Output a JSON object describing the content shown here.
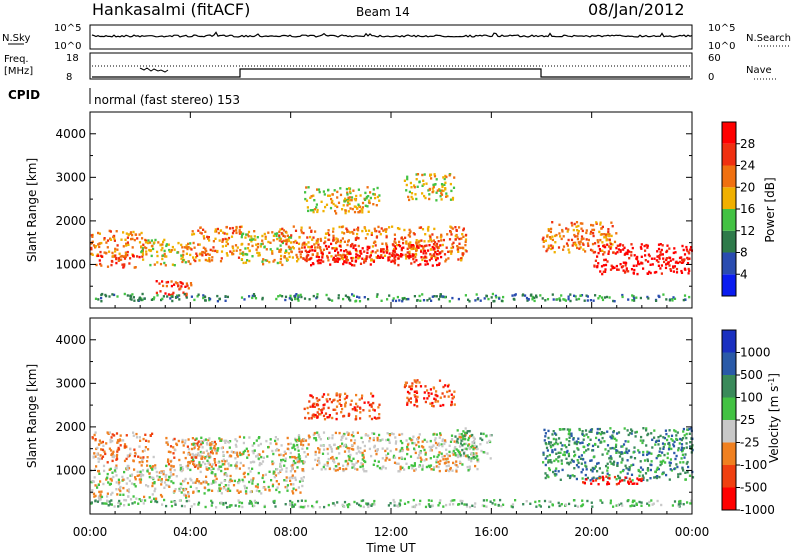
{
  "header": {
    "station": "Hankasalmi (fitACF)",
    "beam": "Beam 14",
    "date": "08/Jan/2012"
  },
  "noise_panel": {
    "left_label": "N.Sky",
    "right_label": "N.Search",
    "left_ticks": [
      "10^5",
      "10^0"
    ],
    "right_ticks": [
      "10^5",
      "10^0"
    ]
  },
  "freq_panel": {
    "left_label_1": "Freq.",
    "left_label_2": "[MHz]",
    "left_ticks": [
      "18",
      "8"
    ],
    "right_label": "Nave",
    "right_ticks": [
      "60",
      "0"
    ]
  },
  "cpid": {
    "label": "CPID",
    "value": "normal (fast stereo) 153"
  },
  "colors": {
    "power": [
      "#0a1cf0",
      "#2a4cb0",
      "#2e7a4a",
      "#43c243",
      "#f0b000",
      "#f07010",
      "#f03010",
      "#ff0000"
    ],
    "velocity": [
      "#ff0000",
      "#f04010",
      "#f08020",
      "#c8c8c8",
      "#43c243",
      "#3a8a5a",
      "#2a5aa8",
      "#1a30c0"
    ]
  },
  "chart_data": [
    {
      "type": "heatmap",
      "name": "power-panel",
      "xlabel": "",
      "ylabel": "Slant Range [km]",
      "ylim": [
        0,
        4500
      ],
      "yticks": [
        "1000",
        "2000",
        "3000",
        "4000"
      ],
      "colorbar_label": "Power [dB]",
      "colorbar_ticks": [
        "28",
        "24",
        "20",
        "16",
        "12",
        "8",
        "4"
      ],
      "regions": [
        {
          "t0": 0.0,
          "t1": 2.2,
          "r0": 1200,
          "r1": 1800,
          "level": 5
        },
        {
          "t0": 0.2,
          "t1": 2.0,
          "r0": 950,
          "r1": 1250,
          "level": 6
        },
        {
          "t0": 2.0,
          "t1": 4.0,
          "r0": 1000,
          "r1": 1600,
          "level": 4
        },
        {
          "t0": 4.0,
          "t1": 6.0,
          "r0": 1100,
          "r1": 1900,
          "level": 5
        },
        {
          "t0": 2.5,
          "t1": 4.0,
          "r0": 300,
          "r1": 650,
          "level": 6
        },
        {
          "t0": 6.0,
          "t1": 8.0,
          "r0": 1000,
          "r1": 1800,
          "level": 4
        },
        {
          "t0": 7.5,
          "t1": 15.0,
          "r0": 1100,
          "r1": 1900,
          "level": 5
        },
        {
          "t0": 8.5,
          "t1": 14.0,
          "r0": 1000,
          "r1": 1500,
          "level": 7
        },
        {
          "t0": 8.5,
          "t1": 11.5,
          "r0": 2200,
          "r1": 2800,
          "level": 4
        },
        {
          "t0": 12.5,
          "t1": 14.5,
          "r0": 2500,
          "r1": 3100,
          "level": 4
        },
        {
          "t0": 18.0,
          "t1": 21.0,
          "r0": 1300,
          "r1": 2000,
          "level": 5
        },
        {
          "t0": 20.0,
          "t1": 24.0,
          "r0": 800,
          "r1": 1500,
          "level": 7
        },
        {
          "t0": 0.0,
          "t1": 24.0,
          "r0": 180,
          "r1": 350,
          "level": 2
        }
      ]
    },
    {
      "type": "heatmap",
      "name": "velocity-panel",
      "xlabel": "Time UT",
      "ylabel": "Slant Range [km]",
      "ylim": [
        0,
        4500
      ],
      "yticks": [
        "1000",
        "2000",
        "3000",
        "4000"
      ],
      "xticks": [
        "00:00",
        "04:00",
        "08:00",
        "12:00",
        "16:00",
        "20:00",
        "00:00"
      ],
      "colorbar_label": "Velocity [m s",
      "colorbar_label_sup": "-1",
      "colorbar_label_end": "]",
      "colorbar_ticks": [
        "1000",
        "500",
        "100",
        "25",
        "-25",
        "-100",
        "-500",
        "-1000"
      ],
      "regions": [
        {
          "t0": 0.0,
          "t1": 2.5,
          "r0": 1200,
          "r1": 1900,
          "level": 2
        },
        {
          "t0": 3.0,
          "t1": 5.0,
          "r0": 1100,
          "r1": 1800,
          "level": 2
        },
        {
          "t0": 0.0,
          "t1": 4.0,
          "r0": 350,
          "r1": 1150,
          "level": 3
        },
        {
          "t0": 4.0,
          "t1": 8.5,
          "r0": 500,
          "r1": 1800,
          "level": 3
        },
        {
          "t0": 8.0,
          "t1": 15.5,
          "r0": 1000,
          "r1": 1900,
          "level": 3
        },
        {
          "t0": 8.5,
          "t1": 11.5,
          "r0": 2200,
          "r1": 2800,
          "level": 1
        },
        {
          "t0": 12.5,
          "t1": 14.5,
          "r0": 2500,
          "r1": 3100,
          "level": 1
        },
        {
          "t0": 14.5,
          "t1": 16.0,
          "r0": 1300,
          "r1": 2000,
          "level": 4
        },
        {
          "t0": 18.0,
          "t1": 24.0,
          "r0": 800,
          "r1": 2000,
          "level": 5
        },
        {
          "t0": 19.5,
          "t1": 22.0,
          "r0": 700,
          "r1": 900,
          "level": 0
        },
        {
          "t0": 0.0,
          "t1": 24.0,
          "r0": 180,
          "r1": 350,
          "level": 4
        }
      ]
    }
  ]
}
